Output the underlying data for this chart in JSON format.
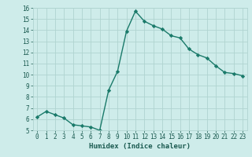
{
  "xlabel": "Humidex (Indice chaleur)",
  "x": [
    0,
    1,
    2,
    3,
    4,
    5,
    6,
    7,
    8,
    9,
    10,
    11,
    12,
    13,
    14,
    15,
    16,
    17,
    18,
    19,
    20,
    21,
    22,
    23
  ],
  "y": [
    6.2,
    6.7,
    6.4,
    6.1,
    5.5,
    5.4,
    5.3,
    5.0,
    8.6,
    10.3,
    13.9,
    15.7,
    14.8,
    14.4,
    14.1,
    13.5,
    13.3,
    12.3,
    11.8,
    11.5,
    10.8,
    10.2,
    10.1,
    9.9
  ],
  "line_color": "#1a7a6a",
  "marker": "D",
  "marker_size": 2.2,
  "bg_color": "#ceecea",
  "grid_color": "#b0d4d0",
  "ylim": [
    5,
    16
  ],
  "xlim": [
    -0.5,
    23.5
  ],
  "yticks": [
    5,
    6,
    7,
    8,
    9,
    10,
    11,
    12,
    13,
    14,
    15,
    16
  ],
  "xticks": [
    0,
    1,
    2,
    3,
    4,
    5,
    6,
    7,
    8,
    9,
    10,
    11,
    12,
    13,
    14,
    15,
    16,
    17,
    18,
    19,
    20,
    21,
    22,
    23
  ],
  "tick_fontsize": 5.5,
  "xlabel_fontsize": 6.5,
  "line_width": 1.0
}
